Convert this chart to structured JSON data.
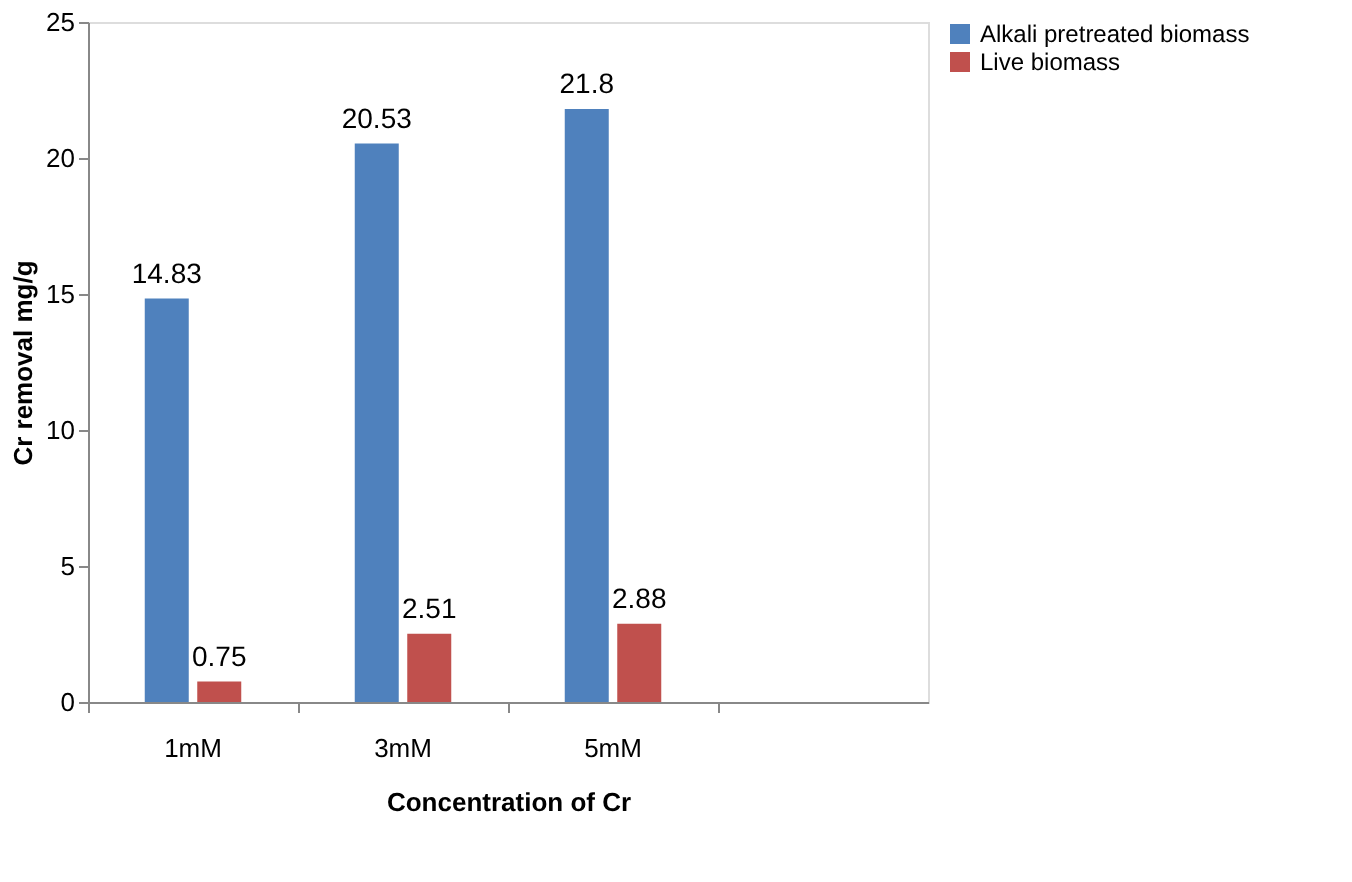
{
  "chart_data": {
    "type": "bar",
    "xlabel": "Concentration of Cr",
    "ylabel": "Cr removal mg/g",
    "categories": [
      "1mM",
      "3mM",
      "5mM",
      null
    ],
    "series": [
      {
        "name": "Alkali pretreated biomass",
        "color": "#4f81bd",
        "values": [
          14.83,
          20.53,
          21.8,
          null
        ]
      },
      {
        "name": "Live biomass",
        "color": "#c0504d",
        "values": [
          0.75,
          2.51,
          2.88,
          null
        ]
      }
    ],
    "ylim": [
      0,
      25
    ],
    "yticks": [
      0,
      5,
      10,
      15,
      20,
      25
    ],
    "grid": false,
    "legend": "right",
    "data_labels": true
  }
}
